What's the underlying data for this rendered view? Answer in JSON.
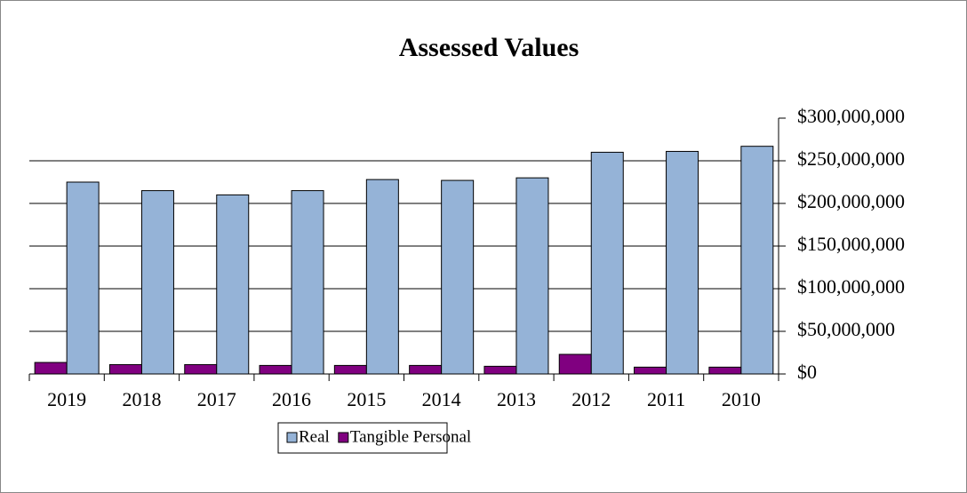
{
  "chart_data": {
    "type": "bar",
    "title": "Assessed Values",
    "categories": [
      "2019",
      "2018",
      "2017",
      "2016",
      "2015",
      "2014",
      "2013",
      "2012",
      "2011",
      "2010"
    ],
    "series": [
      {
        "name": "Tangible Personal",
        "color": "#800080",
        "values": [
          13500000,
          11000000,
          11000000,
          10000000,
          10000000,
          10000000,
          9000000,
          23000000,
          8000000,
          8000000
        ]
      },
      {
        "name": "Real",
        "color": "#95b3d7",
        "values": [
          225000000,
          215000000,
          210000000,
          215000000,
          228000000,
          227000000,
          230000000,
          260000000,
          261000000,
          267000000
        ]
      }
    ],
    "ylim": [
      0,
      300000000
    ],
    "yticks": [
      {
        "value": 0,
        "label": "$0"
      },
      {
        "value": 50000000,
        "label": "$50,000,000"
      },
      {
        "value": 100000000,
        "label": "$100,000,000"
      },
      {
        "value": 150000000,
        "label": "$150,000,000"
      },
      {
        "value": 200000000,
        "label": "$200,000,000"
      },
      {
        "value": 250000000,
        "label": "$250,000,000"
      },
      {
        "value": 300000000,
        "label": "$300,000,000"
      }
    ],
    "grid": true,
    "legend": "bottom"
  }
}
